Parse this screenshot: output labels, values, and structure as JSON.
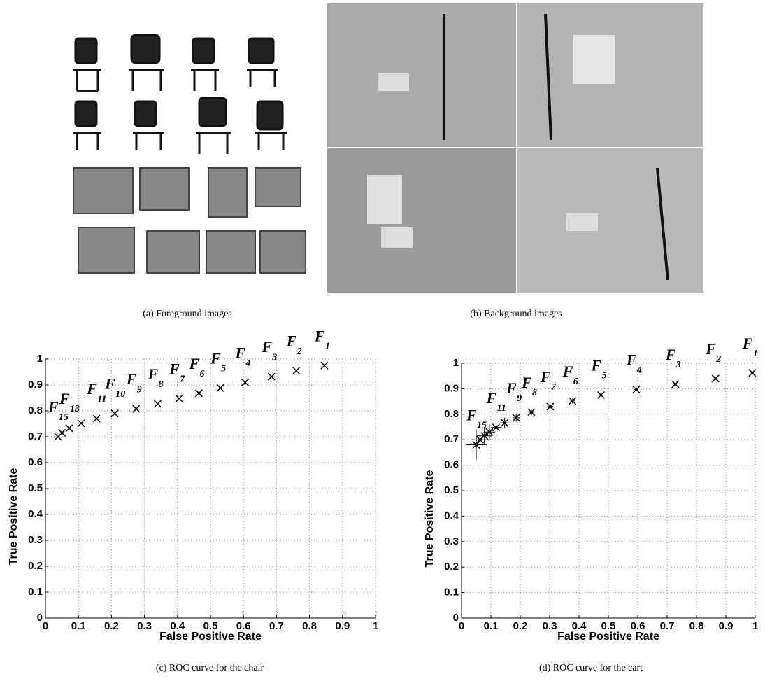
{
  "captions": [
    "(a) Foreground images",
    "(b) Background images",
    "(c) ROC curve for the chair",
    "(d) ROC curve for the cart"
  ],
  "chart_data": [
    {
      "type": "scatter",
      "marker": "x",
      "color": "#000000",
      "grid": true,
      "xlabel": "False Positive Rate",
      "ylabel": "True Positive Rate",
      "x": [
        0.845,
        0.76,
        0.685,
        0.605,
        0.53,
        0.465,
        0.405,
        0.34,
        0.275,
        0.21,
        0.155,
        0.108,
        0.072,
        0.05,
        0.038
      ],
      "values": [
        0.975,
        0.955,
        0.932,
        0.91,
        0.888,
        0.868,
        0.848,
        0.827,
        0.808,
        0.79,
        0.77,
        0.752,
        0.733,
        0.715,
        0.7
      ],
      "point_labels": [
        {
          "text": "F",
          "sub": "1"
        },
        {
          "text": "F",
          "sub": "2"
        },
        {
          "text": "F",
          "sub": "3"
        },
        {
          "text": "F",
          "sub": "4"
        },
        {
          "text": "F",
          "sub": "5"
        },
        {
          "text": "F",
          "sub": "6"
        },
        {
          "text": "F",
          "sub": "7"
        },
        {
          "text": "F",
          "sub": "8"
        },
        {
          "text": "F",
          "sub": "9"
        },
        {
          "text": "F",
          "sub": "10"
        },
        {
          "text": "F",
          "sub": "11"
        },
        null,
        {
          "text": "F",
          "sub": "13"
        },
        null,
        {
          "text": "F",
          "sub": "15"
        }
      ],
      "xlim": [
        0,
        1
      ],
      "ylim": [
        0,
        1
      ],
      "xticks": [
        0,
        0.1,
        0.2,
        0.3,
        0.4,
        0.5,
        0.6,
        0.7,
        0.8,
        0.9,
        1
      ],
      "yticks": [
        0,
        0.1,
        0.2,
        0.3,
        0.4,
        0.5,
        0.6,
        0.7,
        0.8,
        0.9,
        1
      ]
    },
    {
      "type": "scatter",
      "marker": "x",
      "color": "#000000",
      "grid": true,
      "xlabel": "False Positive Rate",
      "ylabel": "True Positive Rate",
      "x": [
        0.99,
        0.865,
        0.728,
        0.595,
        0.475,
        0.378,
        0.302,
        0.238,
        0.186,
        0.147,
        0.118,
        0.095,
        0.078,
        0.063,
        0.05
      ],
      "values": [
        0.962,
        0.94,
        0.918,
        0.897,
        0.875,
        0.852,
        0.83,
        0.808,
        0.786,
        0.766,
        0.748,
        0.73,
        0.715,
        0.7,
        0.68
      ],
      "xerr": [
        0.005,
        0.005,
        0.005,
        0.006,
        0.007,
        0.008,
        0.01,
        0.01,
        0.012,
        0.015,
        0.018,
        0.02,
        0.025,
        0.03,
        0.035
      ],
      "yerr": [
        0.005,
        0.005,
        0.006,
        0.007,
        0.008,
        0.01,
        0.01,
        0.012,
        0.015,
        0.02,
        0.025,
        0.03,
        0.035,
        0.045,
        0.06
      ],
      "point_labels": [
        {
          "text": "F",
          "sub": "1"
        },
        {
          "text": "F",
          "sub": "2"
        },
        {
          "text": "F",
          "sub": "3"
        },
        {
          "text": "F",
          "sub": "4"
        },
        {
          "text": "F",
          "sub": "5"
        },
        {
          "text": "F",
          "sub": "6"
        },
        {
          "text": "F",
          "sub": "7"
        },
        {
          "text": "F",
          "sub": "8"
        },
        {
          "text": "F",
          "sub": "9"
        },
        null,
        {
          "text": "F",
          "sub": "11"
        },
        null,
        null,
        null,
        {
          "text": "F",
          "sub": "15"
        }
      ],
      "xlim": [
        0,
        1
      ],
      "ylim": [
        0,
        1
      ],
      "xticks": [
        0,
        0.1,
        0.2,
        0.3,
        0.4,
        0.5,
        0.6,
        0.7,
        0.8,
        0.9,
        1
      ],
      "yticks": [
        0,
        0.1,
        0.2,
        0.3,
        0.4,
        0.5,
        0.6,
        0.7,
        0.8,
        0.9,
        1
      ]
    }
  ]
}
